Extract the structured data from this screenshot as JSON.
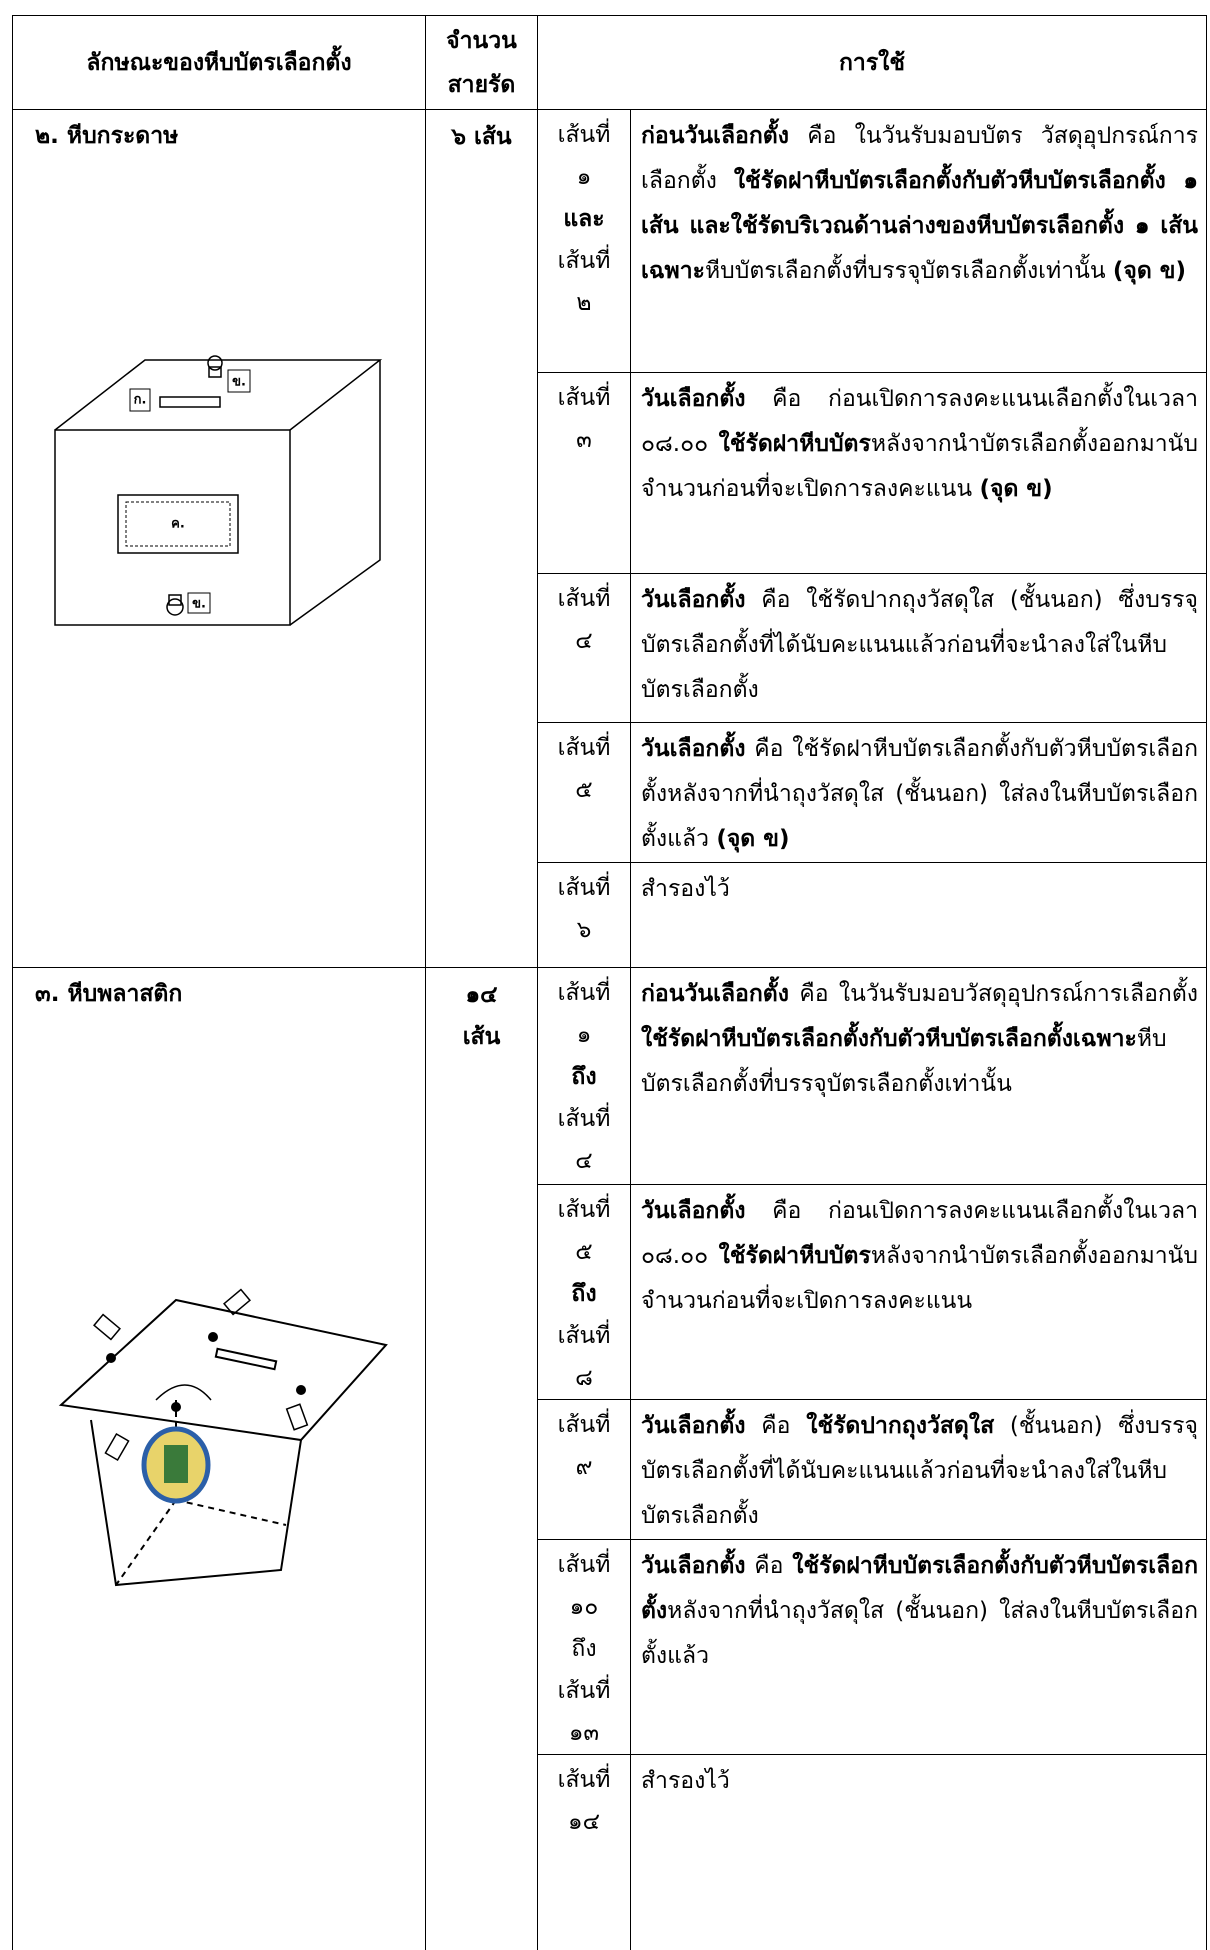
{
  "header": {
    "col1": "ลักษณะของหีบบัตรเลือกตั้ง",
    "col2": [
      "จำนวน",
      "สายรัด"
    ],
    "col3": "การใช้"
  },
  "sections": [
    {
      "name": "๒. หีบกระดาษ",
      "count": [
        "๖ เส้น"
      ],
      "illustration_labels": [
        "ก.",
        "ข.",
        "ค.",
        "ข."
      ],
      "rows": [
        {
          "line": [
            {
              "text": "เส้นที่"
            },
            {
              "text": "๑"
            },
            {
              "text": "และ",
              "bold": true
            },
            {
              "text": "เส้นที่"
            },
            {
              "text": "๒"
            }
          ],
          "usage": [
            {
              "text": "ก่อนวันเลือกตั้ง",
              "bold": true
            },
            {
              "text": " คือ ในวันรับมอบบัตร วัสดุอุปกรณ์การเลือกตั้ง "
            },
            {
              "text": "ใช้รัดฝาหีบบัตรเลือกตั้งกับตัวหีบบัตรเลือกตั้ง ๑ เส้น และใช้รัดบริเวณด้านล่างของหีบบัตรเลือกตั้ง ๑ เส้น เฉพาะ",
              "bold": true
            },
            {
              "text": "หีบบัตรเลือกตั้งที่บรรจุบัตรเลือกตั้งเท่านั้น "
            },
            {
              "text": "(จุด ข)",
              "bold": true
            }
          ]
        },
        {
          "line": [
            {
              "text": "เส้นที่"
            },
            {
              "text": "๓"
            }
          ],
          "usage": [
            {
              "text": "วันเลือกตั้ง",
              "bold": true
            },
            {
              "text": " คือ ก่อนเปิดการลงคะแนนเลือกตั้งในเวลา ๐๘.๐๐ "
            },
            {
              "text": "ใช้รัดฝาหีบบัตร",
              "bold": true
            },
            {
              "text": "หลังจากนำบัตรเลือกตั้งออกมานับจำนวนก่อนที่จะเปิดการลงคะแนน "
            },
            {
              "text": "(จุด ข)",
              "bold": true
            }
          ]
        },
        {
          "line": [
            {
              "text": "เส้นที่"
            },
            {
              "text": "๔"
            }
          ],
          "usage": [
            {
              "text": "วันเลือกตั้ง",
              "bold": true
            },
            {
              "text": " คือ ใช้รัดปากถุงวัสดุใส (ชั้นนอก) ซึ่งบรรจุบัตรเลือกตั้งที่ได้นับคะแนนแล้วก่อนที่จะนำลงใส่ในหีบบัตรเลือกตั้ง"
            }
          ]
        },
        {
          "line": [
            {
              "text": "เส้นที่"
            },
            {
              "text": "๕"
            }
          ],
          "usage": [
            {
              "text": "วันเลือกตั้ง",
              "bold": true
            },
            {
              "text": " คือ ใช้รัดฝาหีบบัตรเลือกตั้งกับตัวหีบบัตรเลือกตั้งหลังจากที่นำถุงวัสดุใส (ชั้นนอก) ใส่ลงในหีบบัตรเลือกตั้งแล้ว "
            },
            {
              "text": "(จุด ข)",
              "bold": true
            }
          ]
        },
        {
          "line": [
            {
              "text": "เส้นที่"
            },
            {
              "text": "๖"
            }
          ],
          "usage": [
            {
              "text": "สำรองไว้"
            }
          ]
        }
      ]
    },
    {
      "name": "๓. หีบพลาสติก",
      "count": [
        "๑๔",
        "เส้น"
      ],
      "rows": [
        {
          "line": [
            {
              "text": "เส้นที่"
            },
            {
              "text": "๑"
            },
            {
              "text": "ถึง",
              "bold": true
            },
            {
              "text": "เส้นที่"
            },
            {
              "text": "๔"
            }
          ],
          "usage": [
            {
              "text": "ก่อนวันเลือกตั้ง",
              "bold": true
            },
            {
              "text": " คือ ในวันรับมอบวัสดุอุปกรณ์การเลือกตั้ง "
            },
            {
              "text": "ใช้รัดฝาหีบบัตรเลือกตั้งกับตัวหีบบัตรเลือกตั้งเฉพาะ",
              "bold": true
            },
            {
              "text": "หีบบัตรเลือกตั้งที่บรรจุบัตรเลือกตั้งเท่านั้น"
            }
          ]
        },
        {
          "line": [
            {
              "text": "เส้นที่"
            },
            {
              "text": "๕"
            },
            {
              "text": "ถึง",
              "bold": true
            },
            {
              "text": "เส้นที่"
            },
            {
              "text": "๘"
            }
          ],
          "usage": [
            {
              "text": "วันเลือกตั้ง",
              "bold": true
            },
            {
              "text": " คือ ก่อนเปิดการลงคะแนนเลือกตั้งในเวลา ๐๘.๐๐ "
            },
            {
              "text": "ใช้รัดฝาหีบบัตร",
              "bold": true
            },
            {
              "text": "หลังจากนำบัตรเลือกตั้งออกมานับจำนวนก่อนที่จะเปิดการลงคะแนน"
            }
          ]
        },
        {
          "line": [
            {
              "text": "เส้นที่"
            },
            {
              "text": "๙"
            }
          ],
          "usage": [
            {
              "text": "วันเลือกตั้ง",
              "bold": true
            },
            {
              "text": " คือ "
            },
            {
              "text": "ใช้รัดปากถุงวัสดุใส",
              "bold": true
            },
            {
              "text": " (ชั้นนอก) ซึ่งบรรจุบัตรเลือกตั้งที่ได้นับคะแนนแล้วก่อนที่จะนำลงใส่ในหีบบัตรเลือกตั้ง"
            }
          ]
        },
        {
          "line": [
            {
              "text": "เส้นที่"
            },
            {
              "text": "๑๐"
            },
            {
              "text": "ถึง"
            },
            {
              "text": "เส้นที่"
            },
            {
              "text": "๑๓"
            }
          ],
          "usage": [
            {
              "text": "วันเลือกตั้ง",
              "bold": true
            },
            {
              "text": " คือ "
            },
            {
              "text": "ใช้รัดฝาหีบบัตรเลือกตั้งกับตัวหีบบัตรเลือกตั้ง",
              "bold": true
            },
            {
              "text": "หลังจากที่นำถุงวัสดุใส (ชั้นนอก) ใส่ลงในหีบบัตรเลือกตั้งแล้ว"
            }
          ]
        },
        {
          "line": [
            {
              "text": "เส้นที่"
            },
            {
              "text": "๑๔"
            }
          ],
          "usage": [
            {
              "text": "สำรองไว้"
            }
          ]
        }
      ]
    }
  ]
}
